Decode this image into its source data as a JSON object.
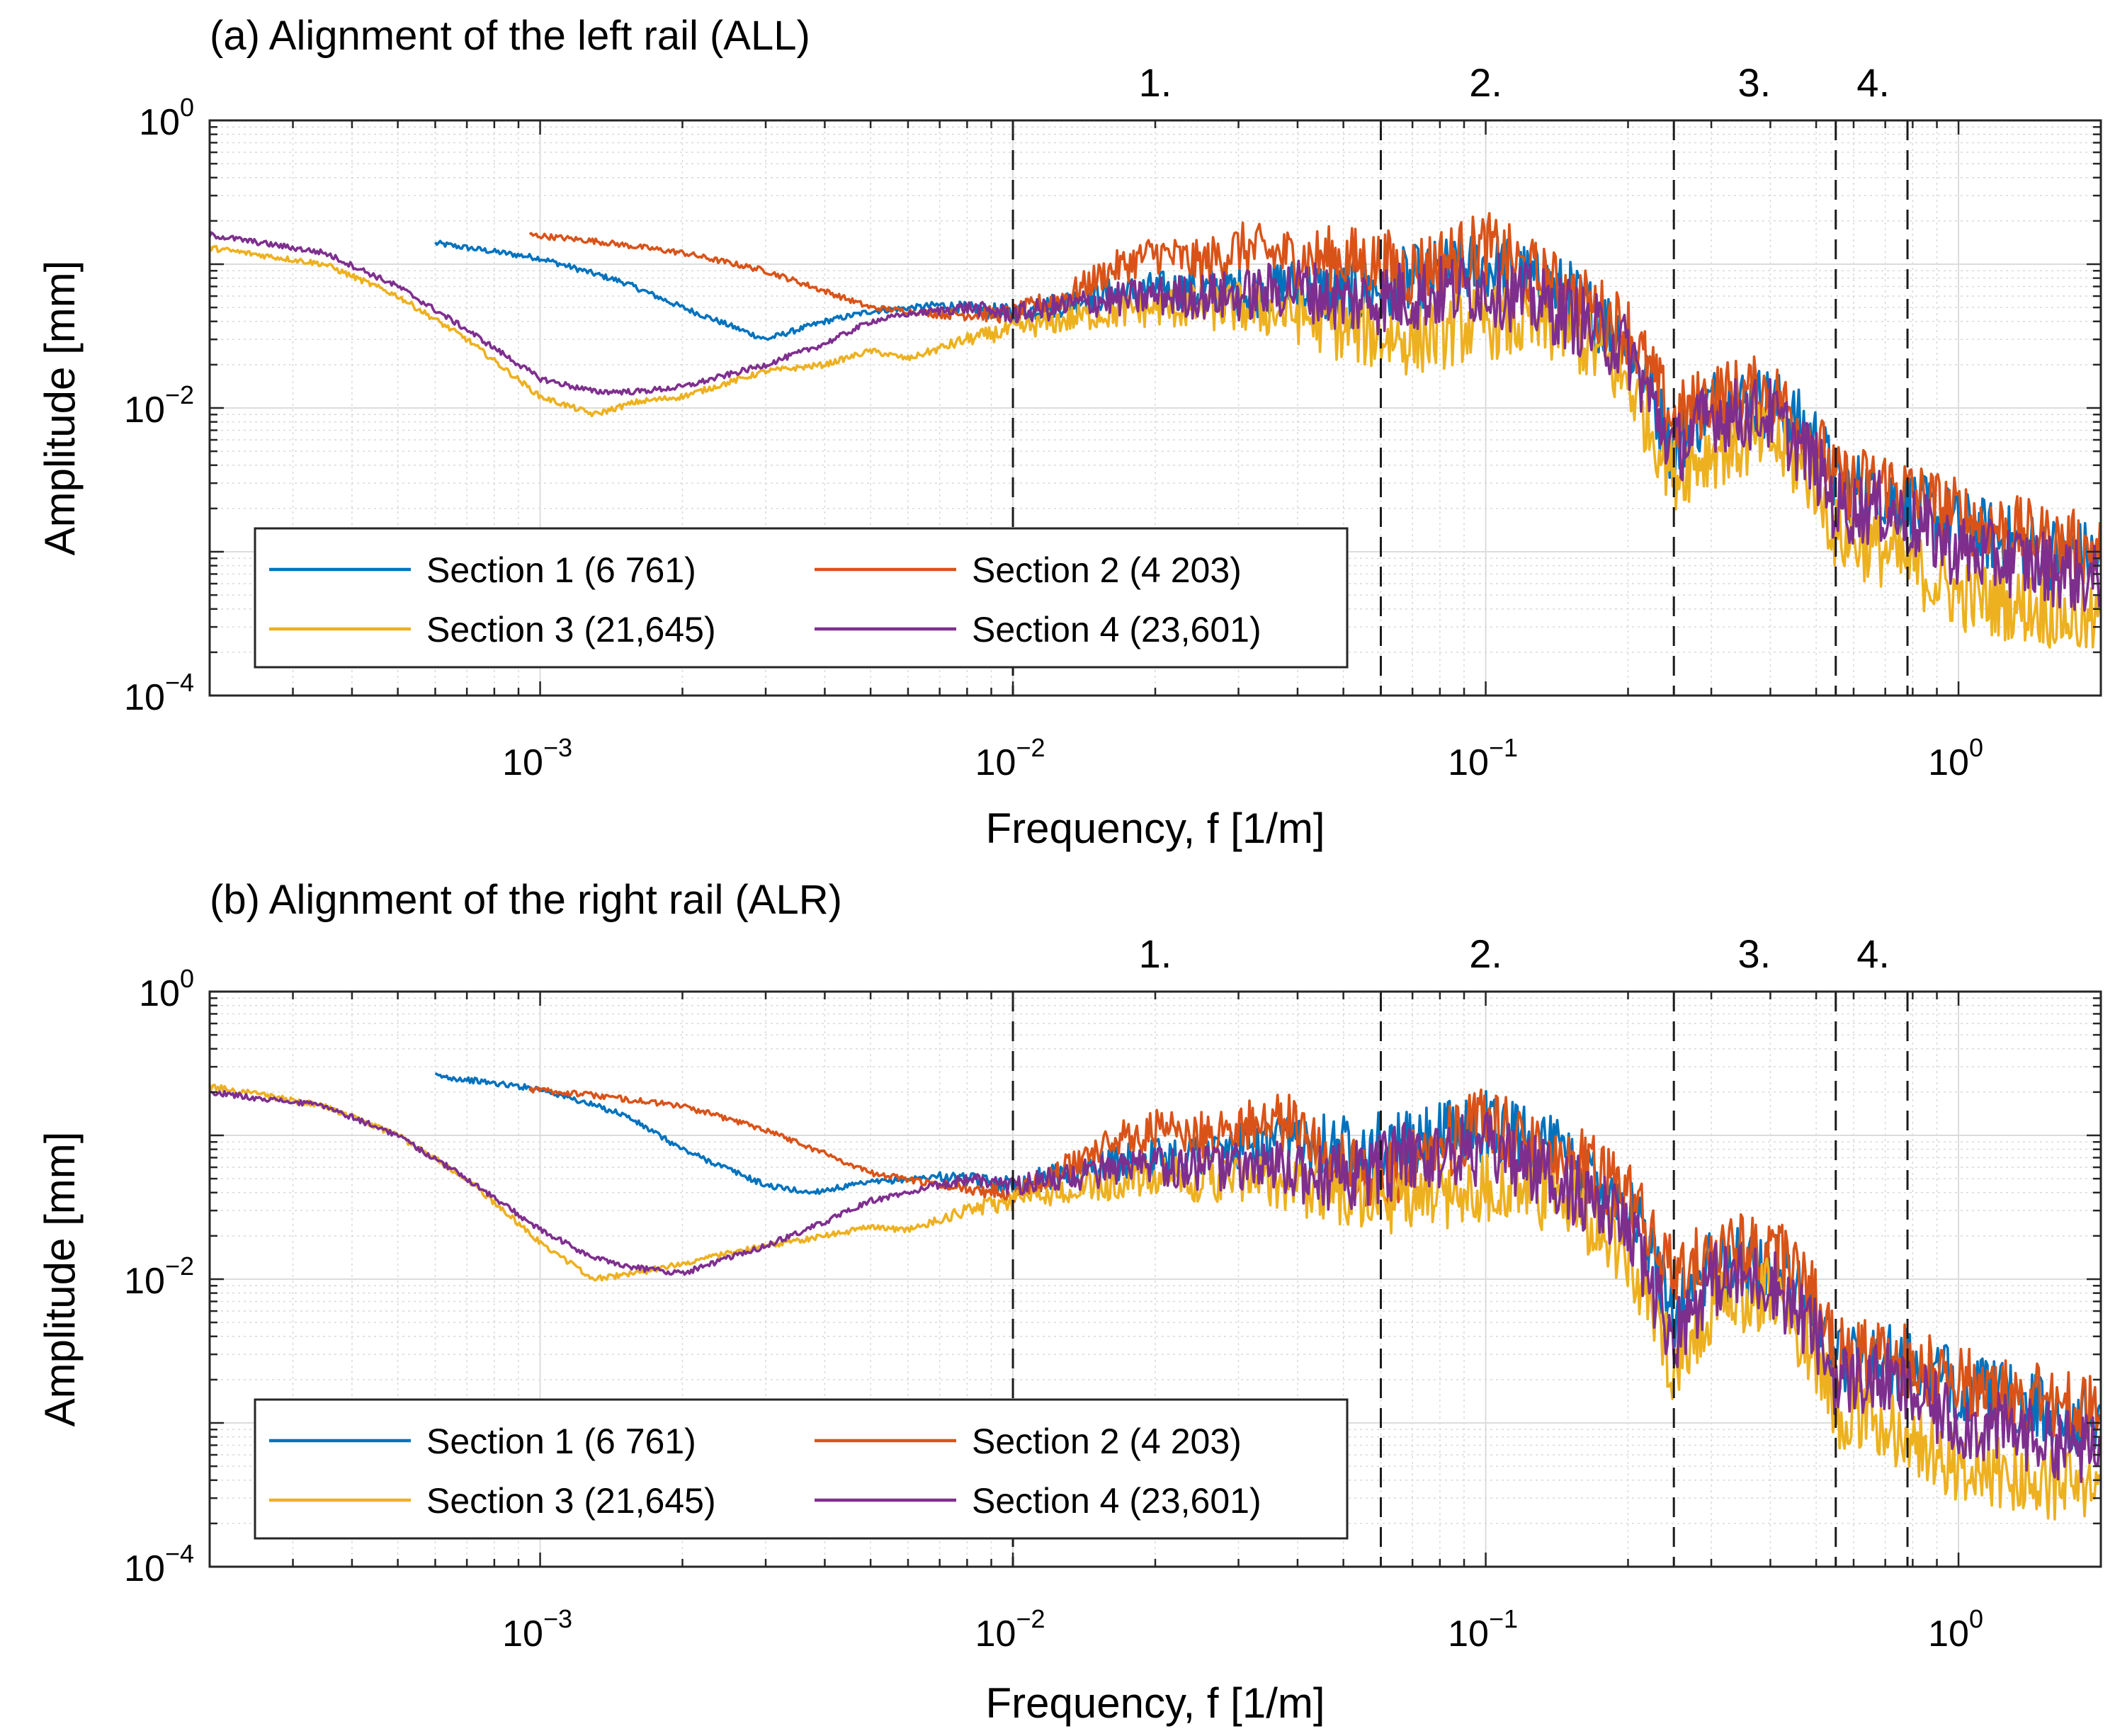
{
  "chart_data": [
    {
      "type": "line",
      "id": "top",
      "title": "(a) Alignment of the left rail (ALL)",
      "xlabel": "Frequency,  f  [1/m]",
      "ylabel": "Amplitude [mm]",
      "x_scale": "log",
      "y_scale": "log",
      "xlim": [
        0.0002,
        2
      ],
      "ylim": [
        0.0001,
        1
      ],
      "x_ticks": [
        {
          "base": "10",
          "exp": "−3",
          "value": 0.001
        },
        {
          "base": "10",
          "exp": "−2",
          "value": 0.01
        },
        {
          "base": "10",
          "exp": "−1",
          "value": 0.1
        },
        {
          "base": "10",
          "exp": "0",
          "value": 1
        }
      ],
      "y_ticks": [
        {
          "base": "10",
          "exp": "0",
          "value": 1
        },
        {
          "base": "10",
          "exp": "−2",
          "value": 0.01
        },
        {
          "base": "10",
          "exp": "−4",
          "value": 0.0001
        }
      ],
      "grid": "major and minor",
      "band_lines": [
        0.01,
        0.06,
        0.25,
        0.55,
        0.78
      ],
      "band_labels": [
        {
          "text": "1.",
          "x": 0.02
        },
        {
          "text": "2.",
          "x": 0.1
        },
        {
          "text": "3.",
          "x": 0.37
        },
        {
          "text": "4.",
          "x": 0.66
        }
      ],
      "legend_position": "bottom-left",
      "series": [
        {
          "name": "Section 1 (6 761)",
          "color": "#0072BD",
          "x": [
            0.0006,
            0.001,
            0.0015,
            0.002,
            0.003,
            0.004,
            0.005,
            0.007,
            0.01,
            0.015,
            0.02,
            0.03,
            0.04,
            0.05,
            0.07,
            0.1,
            0.15,
            0.2,
            0.25,
            0.3,
            0.4,
            0.5,
            0.55,
            0.7,
            1.0,
            1.5,
            2.0
          ],
          "y": [
            0.14,
            0.11,
            0.075,
            0.05,
            0.03,
            0.04,
            0.047,
            0.052,
            0.045,
            0.06,
            0.065,
            0.065,
            0.07,
            0.06,
            0.075,
            0.1,
            0.06,
            0.03,
            0.005,
            0.011,
            0.011,
            0.006,
            0.003,
            0.0025,
            0.0015,
            0.001,
            0.0009
          ]
        },
        {
          "name": "Section 2 (4 203)",
          "color": "#D95319",
          "x": [
            0.00095,
            0.0013,
            0.002,
            0.003,
            0.004,
            0.005,
            0.007,
            0.01,
            0.013,
            0.016,
            0.02,
            0.025,
            0.03,
            0.04,
            0.05,
            0.07,
            0.1,
            0.15,
            0.2,
            0.25,
            0.3,
            0.4,
            0.5,
            0.55,
            0.7,
            1.0,
            1.5,
            2.0
          ],
          "y": [
            0.16,
            0.145,
            0.12,
            0.09,
            0.065,
            0.05,
            0.045,
            0.045,
            0.06,
            0.09,
            0.12,
            0.1,
            0.13,
            0.11,
            0.11,
            0.09,
            0.13,
            0.06,
            0.035,
            0.008,
            0.012,
            0.013,
            0.006,
            0.003,
            0.003,
            0.0018,
            0.0012,
            0.001
          ]
        },
        {
          "name": "Section 3 (21,645)",
          "color": "#EDB120",
          "x": [
            0.0002,
            0.00035,
            0.0005,
            0.0007,
            0.001,
            0.0013,
            0.0016,
            0.002,
            0.003,
            0.004,
            0.005,
            0.006,
            0.008,
            0.01,
            0.015,
            0.02,
            0.03,
            0.04,
            0.05,
            0.07,
            0.1,
            0.15,
            0.2,
            0.25,
            0.3,
            0.4,
            0.5,
            0.55,
            0.7,
            1.0,
            1.5,
            2.0
          ],
          "y": [
            0.13,
            0.1,
            0.06,
            0.03,
            0.012,
            0.009,
            0.011,
            0.012,
            0.018,
            0.02,
            0.025,
            0.022,
            0.03,
            0.035,
            0.045,
            0.05,
            0.05,
            0.045,
            0.035,
            0.03,
            0.04,
            0.035,
            0.015,
            0.0035,
            0.005,
            0.006,
            0.003,
            0.0013,
            0.001,
            0.0005,
            0.0004,
            0.0003
          ]
        },
        {
          "name": "Section 4 (23,601)",
          "color": "#7E2F8E",
          "x": [
            0.0002,
            0.00035,
            0.0005,
            0.0007,
            0.001,
            0.0013,
            0.0016,
            0.002,
            0.003,
            0.004,
            0.005,
            0.006,
            0.008,
            0.01,
            0.015,
            0.02,
            0.03,
            0.04,
            0.05,
            0.07,
            0.1,
            0.15,
            0.2,
            0.25,
            0.3,
            0.4,
            0.5,
            0.55,
            0.7,
            1.0,
            1.5,
            2.0
          ],
          "y": [
            0.16,
            0.12,
            0.07,
            0.035,
            0.016,
            0.013,
            0.013,
            0.014,
            0.02,
            0.028,
            0.04,
            0.045,
            0.05,
            0.045,
            0.055,
            0.06,
            0.06,
            0.07,
            0.055,
            0.06,
            0.07,
            0.045,
            0.025,
            0.005,
            0.009,
            0.009,
            0.004,
            0.002,
            0.002,
            0.001,
            0.0008,
            0.0006
          ]
        }
      ]
    },
    {
      "type": "line",
      "id": "bottom",
      "title": "(b) Alignment of the right rail (ALR)",
      "xlabel": "Frequency,  f  [1/m]",
      "ylabel": "Amplitude [mm]",
      "x_scale": "log",
      "y_scale": "log",
      "xlim": [
        0.0002,
        2
      ],
      "ylim": [
        0.0001,
        1
      ],
      "x_ticks": [
        {
          "base": "10",
          "exp": "−3",
          "value": 0.001
        },
        {
          "base": "10",
          "exp": "−2",
          "value": 0.01
        },
        {
          "base": "10",
          "exp": "−1",
          "value": 0.1
        },
        {
          "base": "10",
          "exp": "0",
          "value": 1
        }
      ],
      "y_ticks": [
        {
          "base": "10",
          "exp": "0",
          "value": 1
        },
        {
          "base": "10",
          "exp": "−2",
          "value": 0.01
        },
        {
          "base": "10",
          "exp": "−4",
          "value": 0.0001
        }
      ],
      "grid": "major and minor",
      "band_lines": [
        0.01,
        0.06,
        0.25,
        0.55,
        0.78
      ],
      "band_labels": [
        {
          "text": "1.",
          "x": 0.02
        },
        {
          "text": "2.",
          "x": 0.1
        },
        {
          "text": "3.",
          "x": 0.37
        },
        {
          "text": "4.",
          "x": 0.66
        }
      ],
      "legend_position": "bottom-left",
      "series": [
        {
          "name": "Section 1 (6 761)",
          "color": "#0072BD",
          "x": [
            0.0006,
            0.001,
            0.0015,
            0.002,
            0.003,
            0.0037,
            0.005,
            0.007,
            0.01,
            0.015,
            0.02,
            0.03,
            0.04,
            0.05,
            0.07,
            0.1,
            0.15,
            0.2,
            0.25,
            0.3,
            0.4,
            0.5,
            0.55,
            0.7,
            1.0,
            1.5,
            2.0
          ],
          "y": [
            0.26,
            0.21,
            0.14,
            0.08,
            0.045,
            0.04,
            0.047,
            0.052,
            0.045,
            0.06,
            0.07,
            0.08,
            0.09,
            0.085,
            0.08,
            0.12,
            0.07,
            0.035,
            0.006,
            0.012,
            0.013,
            0.006,
            0.003,
            0.0028,
            0.0018,
            0.0012,
            0.001
          ]
        },
        {
          "name": "Section 2 (4 203)",
          "color": "#D95319",
          "x": [
            0.00095,
            0.0013,
            0.002,
            0.003,
            0.004,
            0.005,
            0.007,
            0.01,
            0.013,
            0.016,
            0.02,
            0.025,
            0.03,
            0.04,
            0.05,
            0.06,
            0.07,
            0.1,
            0.15,
            0.2,
            0.25,
            0.3,
            0.4,
            0.5,
            0.55,
            0.7,
            1.0,
            1.5,
            2.0
          ],
          "y": [
            0.21,
            0.19,
            0.16,
            0.11,
            0.075,
            0.055,
            0.045,
            0.04,
            0.06,
            0.09,
            0.11,
            0.1,
            0.12,
            0.12,
            0.06,
            0.045,
            0.07,
            0.12,
            0.07,
            0.04,
            0.01,
            0.015,
            0.018,
            0.007,
            0.003,
            0.003,
            0.002,
            0.0014,
            0.0012
          ]
        },
        {
          "name": "Section 3 (21,645)",
          "color": "#EDB120",
          "x": [
            0.0002,
            0.00035,
            0.0005,
            0.0007,
            0.001,
            0.0013,
            0.0016,
            0.002,
            0.003,
            0.004,
            0.005,
            0.006,
            0.008,
            0.01,
            0.015,
            0.02,
            0.03,
            0.04,
            0.05,
            0.07,
            0.1,
            0.15,
            0.2,
            0.25,
            0.3,
            0.4,
            0.5,
            0.55,
            0.7,
            1.0,
            1.5,
            2.0
          ],
          "y": [
            0.22,
            0.16,
            0.1,
            0.05,
            0.018,
            0.01,
            0.011,
            0.013,
            0.017,
            0.02,
            0.023,
            0.022,
            0.03,
            0.035,
            0.045,
            0.05,
            0.05,
            0.045,
            0.04,
            0.035,
            0.045,
            0.035,
            0.015,
            0.0025,
            0.006,
            0.008,
            0.003,
            0.0012,
            0.001,
            0.0005,
            0.0004,
            0.0003
          ]
        },
        {
          "name": "Section 4 (23,601)",
          "color": "#7E2F8E",
          "x": [
            0.0002,
            0.00035,
            0.0005,
            0.0007,
            0.001,
            0.0013,
            0.0016,
            0.002,
            0.003,
            0.004,
            0.005,
            0.006,
            0.008,
            0.01,
            0.015,
            0.02,
            0.03,
            0.04,
            0.05,
            0.07,
            0.1,
            0.15,
            0.2,
            0.25,
            0.3,
            0.4,
            0.5,
            0.55,
            0.7,
            1.0,
            1.5,
            2.0
          ],
          "y": [
            0.2,
            0.16,
            0.1,
            0.05,
            0.022,
            0.014,
            0.012,
            0.011,
            0.017,
            0.025,
            0.035,
            0.04,
            0.05,
            0.045,
            0.055,
            0.06,
            0.06,
            0.055,
            0.05,
            0.07,
            0.08,
            0.045,
            0.022,
            0.004,
            0.01,
            0.01,
            0.004,
            0.002,
            0.002,
            0.001,
            0.0008,
            0.0006
          ]
        }
      ]
    }
  ]
}
